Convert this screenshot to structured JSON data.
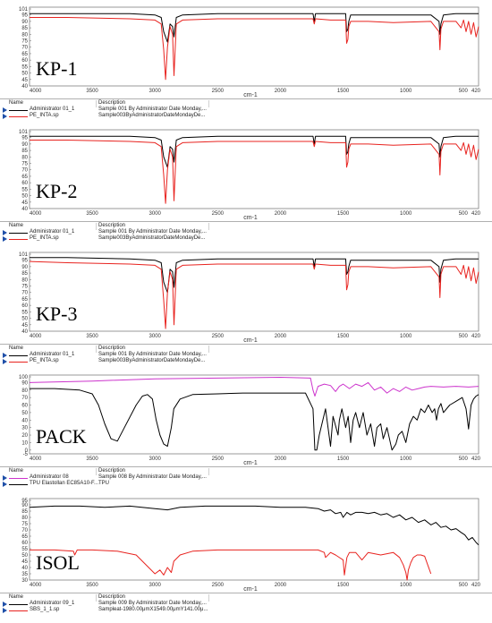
{
  "x_ticks": [
    "4000",
    "3500",
    "3000",
    "2500",
    "2000",
    "1500",
    "1000",
    "500",
    "420"
  ],
  "x_unit": "cm-1",
  "legend_headers": {
    "name": "Name",
    "description": "Description"
  },
  "panels": [
    {
      "label": "KP-1",
      "y_ticks": [
        "101",
        "95",
        "90",
        "85",
        "80",
        "75",
        "70",
        "65",
        "60",
        "55",
        "50",
        "45",
        "40"
      ],
      "legend": [
        {
          "name": "Administrator 01_1",
          "description": "Sample 001 By Administrator Date Monday,...",
          "color": "#000000"
        },
        {
          "name": "PE_INTA.sp",
          "description": "Sample003ByAdministratorDateMondayDe...",
          "color": "#e8231f"
        }
      ]
    },
    {
      "label": "KP-2",
      "y_ticks": [
        "101",
        "95",
        "90",
        "85",
        "80",
        "75",
        "70",
        "65",
        "60",
        "55",
        "50",
        "45",
        "40"
      ],
      "legend": [
        {
          "name": "Administrator 01_1",
          "description": "Sample 001 By Administrator Date Monday,...",
          "color": "#000000"
        },
        {
          "name": "PE_INTA.sp",
          "description": "Sample003ByAdministratorDateMondayDe...",
          "color": "#e8231f"
        }
      ]
    },
    {
      "label": "KP-3",
      "y_ticks": [
        "101",
        "95",
        "90",
        "85",
        "80",
        "75",
        "70",
        "65",
        "60",
        "55",
        "50",
        "45",
        "40"
      ],
      "legend": [
        {
          "name": "Administrator 01_1",
          "description": "Sample 001 By Administrator Date Monday,...",
          "color": "#000000"
        },
        {
          "name": "PE_INTA.sp",
          "description": "Sample003ByAdministratorDateMondayDe...",
          "color": "#e8231f"
        }
      ]
    },
    {
      "label": "PACK",
      "y_ticks": [
        "100",
        "90",
        "80",
        "70",
        "60",
        "50",
        "40",
        "30",
        "20",
        "10",
        "0",
        "-5"
      ],
      "legend": [
        {
          "name": "Administrator 08",
          "description": "Sample 008 By Administrator Date Monday,...",
          "color": "#cc33cc"
        },
        {
          "name": "TPU Elastollan EC85A10-F...",
          "description": "TPU",
          "color": "#000000"
        }
      ]
    },
    {
      "label": "ISOL",
      "y_ticks": [
        "95",
        "90",
        "85",
        "80",
        "75",
        "70",
        "65",
        "60",
        "55",
        "50",
        "45",
        "40",
        "35",
        "30"
      ],
      "legend": [
        {
          "name": "Administrator 09_1",
          "description": "Sample 009 By Administrator Date Monday,...",
          "color": "#000000"
        },
        {
          "name": "SBS_1_1.sp",
          "description": "Sampleat-1980.00μmX1549.00μmY141.00μ...",
          "color": "#e8231f"
        }
      ]
    }
  ],
  "chart_data": [
    {
      "type": "line",
      "title": "KP-1",
      "xlabel": "cm-1",
      "xlim": [
        4000,
        420
      ],
      "ylim": [
        40,
        101
      ],
      "series": [
        {
          "name": "Administrator 01_1",
          "color": "#000000",
          "x": [
            4000,
            3700,
            3200,
            3000,
            2950,
            2930,
            2900,
            2880,
            2860,
            2848,
            2830,
            2780,
            2500,
            2100,
            1740,
            1730,
            1720,
            1600,
            1480,
            1472,
            1462,
            1455,
            1440,
            1300,
            1100,
            800,
            735,
            728,
            720,
            700,
            600,
            500,
            420
          ],
          "y": [
            96,
            96,
            96,
            95,
            93,
            82,
            74,
            88,
            86,
            78,
            93,
            95,
            96,
            96,
            96,
            90,
            96,
            96,
            96,
            82,
            84,
            90,
            95,
            95,
            95,
            95,
            90,
            80,
            88,
            95,
            96,
            96,
            96
          ]
        },
        {
          "name": "PE_INTA.sp",
          "color": "#e8231f",
          "x": [
            4000,
            3700,
            3200,
            3000,
            2950,
            2930,
            2915,
            2900,
            2880,
            2860,
            2848,
            2830,
            2780,
            2500,
            2100,
            1740,
            1730,
            1720,
            1600,
            1480,
            1472,
            1462,
            1455,
            1440,
            1300,
            1100,
            800,
            735,
            728,
            720,
            700,
            600,
            560,
            540,
            520,
            500,
            480,
            460,
            440,
            420
          ],
          "y": [
            93,
            93,
            92,
            91,
            88,
            68,
            45,
            70,
            86,
            80,
            48,
            88,
            91,
            92,
            92,
            92,
            88,
            92,
            91,
            91,
            73,
            76,
            86,
            90,
            90,
            89,
            90,
            82,
            68,
            84,
            90,
            90,
            85,
            91,
            82,
            90,
            80,
            89,
            78,
            86
          ]
        }
      ]
    },
    {
      "type": "line",
      "title": "KP-2",
      "xlabel": "cm-1",
      "xlim": [
        4000,
        420
      ],
      "ylim": [
        40,
        101
      ],
      "series": [
        {
          "name": "Administrator 01_1",
          "color": "#000000",
          "x": [
            4000,
            3700,
            3200,
            3000,
            2950,
            2930,
            2900,
            2880,
            2860,
            2848,
            2830,
            2780,
            2500,
            2100,
            1740,
            1730,
            1720,
            1600,
            1480,
            1472,
            1462,
            1455,
            1440,
            1300,
            1100,
            800,
            735,
            728,
            720,
            700,
            600,
            500,
            420
          ],
          "y": [
            96,
            96,
            96,
            95,
            93,
            80,
            72,
            88,
            86,
            76,
            93,
            95,
            96,
            96,
            96,
            90,
            96,
            96,
            96,
            82,
            84,
            90,
            95,
            95,
            95,
            95,
            90,
            80,
            88,
            95,
            96,
            96,
            96
          ]
        },
        {
          "name": "PE_INTA.sp",
          "color": "#e8231f",
          "x": [
            4000,
            3700,
            3200,
            3000,
            2950,
            2930,
            2915,
            2900,
            2880,
            2860,
            2848,
            2830,
            2780,
            2500,
            2100,
            1740,
            1730,
            1720,
            1600,
            1480,
            1472,
            1462,
            1455,
            1440,
            1300,
            1100,
            800,
            735,
            728,
            720,
            700,
            600,
            560,
            540,
            520,
            500,
            480,
            460,
            440,
            420
          ],
          "y": [
            93,
            93,
            92,
            91,
            88,
            66,
            44,
            70,
            86,
            80,
            46,
            88,
            91,
            92,
            92,
            92,
            88,
            92,
            91,
            91,
            72,
            76,
            86,
            90,
            90,
            89,
            90,
            82,
            66,
            84,
            90,
            90,
            85,
            91,
            82,
            90,
            80,
            89,
            78,
            86
          ]
        }
      ]
    },
    {
      "type": "line",
      "title": "KP-3",
      "xlabel": "cm-1",
      "xlim": [
        4000,
        420
      ],
      "ylim": [
        40,
        101
      ],
      "series": [
        {
          "name": "Administrator 01_1",
          "color": "#000000",
          "x": [
            4000,
            3700,
            3200,
            3000,
            2950,
            2930,
            2900,
            2880,
            2860,
            2848,
            2830,
            2780,
            2500,
            2100,
            1740,
            1730,
            1720,
            1600,
            1480,
            1472,
            1462,
            1455,
            1440,
            1300,
            1100,
            800,
            735,
            728,
            720,
            700,
            600,
            500,
            420
          ],
          "y": [
            97,
            97,
            96,
            95,
            93,
            78,
            70,
            88,
            86,
            74,
            93,
            95,
            96,
            96,
            96,
            90,
            96,
            96,
            96,
            84,
            86,
            90,
            95,
            95,
            95,
            95,
            90,
            78,
            88,
            95,
            96,
            96,
            96
          ]
        },
        {
          "name": "PE_INTA.sp",
          "color": "#e8231f",
          "x": [
            4000,
            3700,
            3200,
            3000,
            2950,
            2930,
            2915,
            2900,
            2880,
            2860,
            2848,
            2830,
            2780,
            2500,
            2100,
            1740,
            1730,
            1720,
            1600,
            1480,
            1472,
            1462,
            1455,
            1440,
            1300,
            1100,
            800,
            735,
            728,
            720,
            700,
            600,
            560,
            540,
            520,
            500,
            480,
            460,
            440,
            420
          ],
          "y": [
            94,
            93,
            92,
            91,
            88,
            64,
            42,
            70,
            86,
            80,
            45,
            88,
            91,
            92,
            92,
            92,
            88,
            92,
            91,
            91,
            72,
            76,
            86,
            90,
            90,
            89,
            90,
            82,
            66,
            84,
            90,
            90,
            84,
            91,
            81,
            90,
            79,
            89,
            77,
            86
          ]
        }
      ]
    },
    {
      "type": "line",
      "title": "PACK",
      "xlabel": "cm-1",
      "xlim": [
        4000,
        420
      ],
      "ylim": [
        -5,
        100
      ],
      "series": [
        {
          "name": "Administrator 08",
          "color": "#cc33cc",
          "x": [
            4000,
            3500,
            3000,
            2500,
            2000,
            1760,
            1740,
            1725,
            1700,
            1650,
            1600,
            1560,
            1530,
            1500,
            1450,
            1400,
            1350,
            1300,
            1250,
            1200,
            1150,
            1100,
            1050,
            1000,
            950,
            900,
            850,
            800,
            700,
            600,
            500,
            420
          ],
          "y": [
            90,
            92,
            95,
            96,
            97,
            96,
            80,
            72,
            85,
            88,
            86,
            78,
            85,
            88,
            82,
            88,
            85,
            90,
            80,
            84,
            76,
            82,
            78,
            84,
            80,
            82,
            84,
            85,
            84,
            85,
            84,
            85
          ]
        },
        {
          "name": "TPU Elastollan EC85A10-F...",
          "color": "#000000",
          "x": [
            4000,
            3800,
            3600,
            3500,
            3450,
            3400,
            3350,
            3300,
            3250,
            3150,
            3100,
            3060,
            3020,
            2990,
            2960,
            2930,
            2900,
            2870,
            2850,
            2800,
            2700,
            2500,
            2300,
            2000,
            1800,
            1740,
            1725,
            1710,
            1690,
            1640,
            1620,
            1600,
            1580,
            1540,
            1530,
            1510,
            1480,
            1460,
            1440,
            1420,
            1400,
            1370,
            1340,
            1310,
            1280,
            1250,
            1230,
            1200,
            1180,
            1150,
            1110,
            1080,
            1060,
            1030,
            1000,
            970,
            940,
            910,
            880,
            850,
            820,
            790,
            770,
            755,
            740,
            720,
            700,
            650,
            600,
            550,
            520,
            500,
            480,
            460,
            440,
            420
          ],
          "y": [
            82,
            82,
            80,
            75,
            60,
            35,
            15,
            12,
            28,
            60,
            72,
            74,
            68,
            40,
            20,
            8,
            5,
            30,
            55,
            68,
            74,
            75,
            76,
            76,
            76,
            55,
            0,
            0,
            20,
            55,
            30,
            5,
            45,
            20,
            40,
            55,
            30,
            45,
            10,
            40,
            50,
            30,
            50,
            20,
            35,
            5,
            30,
            35,
            15,
            30,
            0,
            8,
            20,
            25,
            10,
            35,
            45,
            40,
            55,
            50,
            60,
            50,
            55,
            40,
            55,
            62,
            50,
            60,
            65,
            70,
            55,
            28,
            60,
            68,
            72,
            74
          ]
        }
      ]
    },
    {
      "type": "line",
      "title": "ISOL",
      "xlabel": "cm-1",
      "xlim": [
        4000,
        420
      ],
      "ylim": [
        30,
        95
      ],
      "series": [
        {
          "name": "Administrator 09_1",
          "color": "#000000",
          "x": [
            4000,
            3800,
            3600,
            3400,
            3200,
            3000,
            2900,
            2800,
            2600,
            2400,
            2200,
            2000,
            1800,
            1700,
            1650,
            1600,
            1560,
            1520,
            1500,
            1470,
            1440,
            1400,
            1350,
            1300,
            1250,
            1200,
            1150,
            1100,
            1050,
            1000,
            950,
            900,
            850,
            800,
            760,
            720,
            680,
            640,
            600,
            560,
            530,
            500,
            470,
            440,
            420
          ],
          "y": [
            88,
            89,
            89,
            88,
            89,
            87,
            86,
            88,
            89,
            89,
            89,
            88,
            88,
            87,
            85,
            86,
            83,
            84,
            80,
            84,
            82,
            84,
            84,
            83,
            84,
            82,
            83,
            80,
            82,
            78,
            80,
            76,
            78,
            74,
            76,
            72,
            73,
            70,
            71,
            68,
            66,
            62,
            64,
            60,
            58
          ]
        },
        {
          "name": "SBS_1_1.sp",
          "color": "#e8231f",
          "x": [
            4000,
            3800,
            3650,
            3640,
            3620,
            3500,
            3300,
            3150,
            3050,
            3000,
            2960,
            2930,
            2900,
            2870,
            2850,
            2800,
            2700,
            2500,
            2300,
            2000,
            1800,
            1700,
            1650,
            1640,
            1600,
            1560,
            1500,
            1495,
            1490,
            1470,
            1450,
            1400,
            1350,
            1300,
            1200,
            1100,
            1050,
            1020,
            1000,
            990,
            980,
            960,
            940,
            910,
            880,
            850,
            800
          ],
          "y": [
            54,
            54,
            53,
            50,
            54,
            54,
            53,
            50,
            40,
            35,
            38,
            34,
            40,
            36,
            45,
            50,
            53,
            54,
            54,
            54,
            54,
            54,
            52,
            48,
            52,
            50,
            46,
            40,
            34,
            48,
            52,
            52,
            46,
            52,
            50,
            52,
            48,
            42,
            36,
            30,
            38,
            44,
            48,
            50,
            50,
            49,
            35
          ]
        }
      ]
    }
  ]
}
